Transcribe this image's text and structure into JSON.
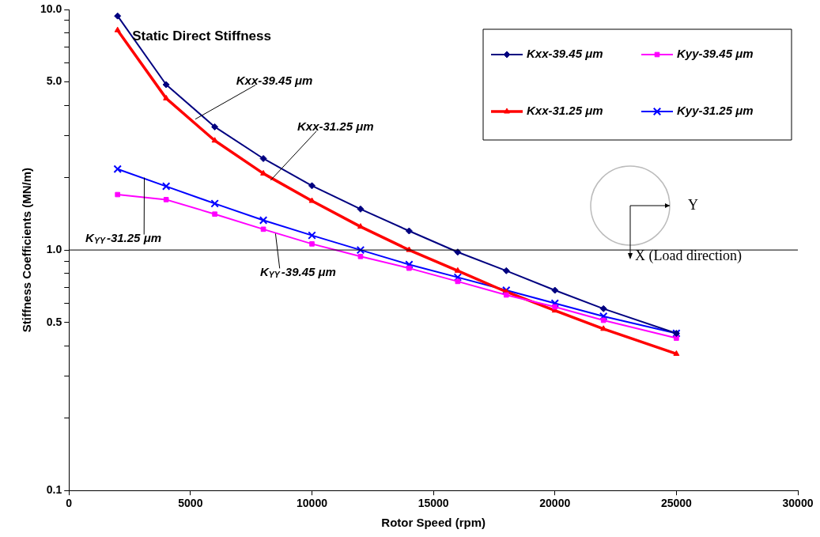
{
  "chart_data": {
    "type": "line",
    "xlabel": "Rotor Speed (rpm)",
    "ylabel": "Stiffness Coefficients (MN/m)",
    "log": "y",
    "x": [
      2000,
      4000,
      6000,
      8000,
      10000,
      12000,
      14000,
      16000,
      18000,
      20000,
      22000,
      25000
    ],
    "xlim": [
      0,
      30000
    ],
    "xticks": [
      0,
      5000,
      10000,
      15000,
      20000,
      25000,
      30000
    ],
    "ylim": [
      0.1,
      10
    ],
    "yticks": [
      {
        "value": 0.1,
        "label": "0.1"
      },
      {
        "value": 0.2,
        "label": null
      },
      {
        "value": 0.3,
        "label": null
      },
      {
        "value": 0.4,
        "label": null
      },
      {
        "value": 0.5,
        "label": "0.5"
      },
      {
        "value": 0.6,
        "label": null
      },
      {
        "value": 0.7,
        "label": null
      },
      {
        "value": 0.8,
        "label": null
      },
      {
        "value": 0.9,
        "label": null
      },
      {
        "value": 1,
        "label": "1.0"
      },
      {
        "value": 2,
        "label": null
      },
      {
        "value": 3,
        "label": null
      },
      {
        "value": 4,
        "label": null
      },
      {
        "value": 5,
        "label": "5.0"
      },
      {
        "value": 6,
        "label": null
      },
      {
        "value": 7,
        "label": null
      },
      {
        "value": 8,
        "label": null
      },
      {
        "value": 9,
        "label": null
      },
      {
        "value": 10,
        "label": "10.0"
      }
    ],
    "grid": false,
    "legend": "top right",
    "line_style": "solid",
    "series": [
      {
        "name": "Kxx-39.45 μm",
        "color": "#000080",
        "marker": "diamond",
        "values": [
          9.4,
          4.87,
          3.25,
          2.4,
          1.85,
          1.48,
          1.2,
          0.98,
          0.82,
          0.68,
          0.57,
          0.45
        ]
      },
      {
        "name": "Kyy-39.45 μm",
        "color": "#ff00ff",
        "marker": "square",
        "values": [
          1.7,
          1.62,
          1.41,
          1.22,
          1.06,
          0.94,
          0.84,
          0.74,
          0.65,
          0.58,
          0.51,
          0.43
        ]
      },
      {
        "name": "Kxx-31.25 μm",
        "color": "#ff0000",
        "marker": "triangle",
        "values": [
          8.2,
          4.27,
          2.85,
          2.08,
          1.6,
          1.25,
          1.0,
          0.82,
          0.67,
          0.56,
          0.47,
          0.37
        ]
      },
      {
        "name": "Kyy-31.25 μm",
        "color": "#0000ff",
        "marker": "cross",
        "values": [
          2.17,
          1.84,
          1.56,
          1.33,
          1.15,
          1.0,
          0.87,
          0.77,
          0.68,
          0.6,
          0.53,
          0.45
        ]
      }
    ],
    "ref_lines": [
      {
        "axis": "y",
        "value": 1,
        "color": "#000000"
      }
    ],
    "annotations": [
      "Static Direct Stiffness",
      {
        "text": "Kxx-39.45 μm",
        "x": 5200,
        "y": 3.5
      },
      {
        "text": "Kxx-31.25 μm",
        "x": 8300,
        "y": 1.95
      },
      {
        "text": "K$_{YY}$-31.25 μm",
        "x": 3100,
        "y": 2.0
      },
      {
        "text": "K$_{YY}$-39.45 μm",
        "x": 8500,
        "y": 1.17
      },
      "Y",
      "X (Load direction)"
    ]
  }
}
